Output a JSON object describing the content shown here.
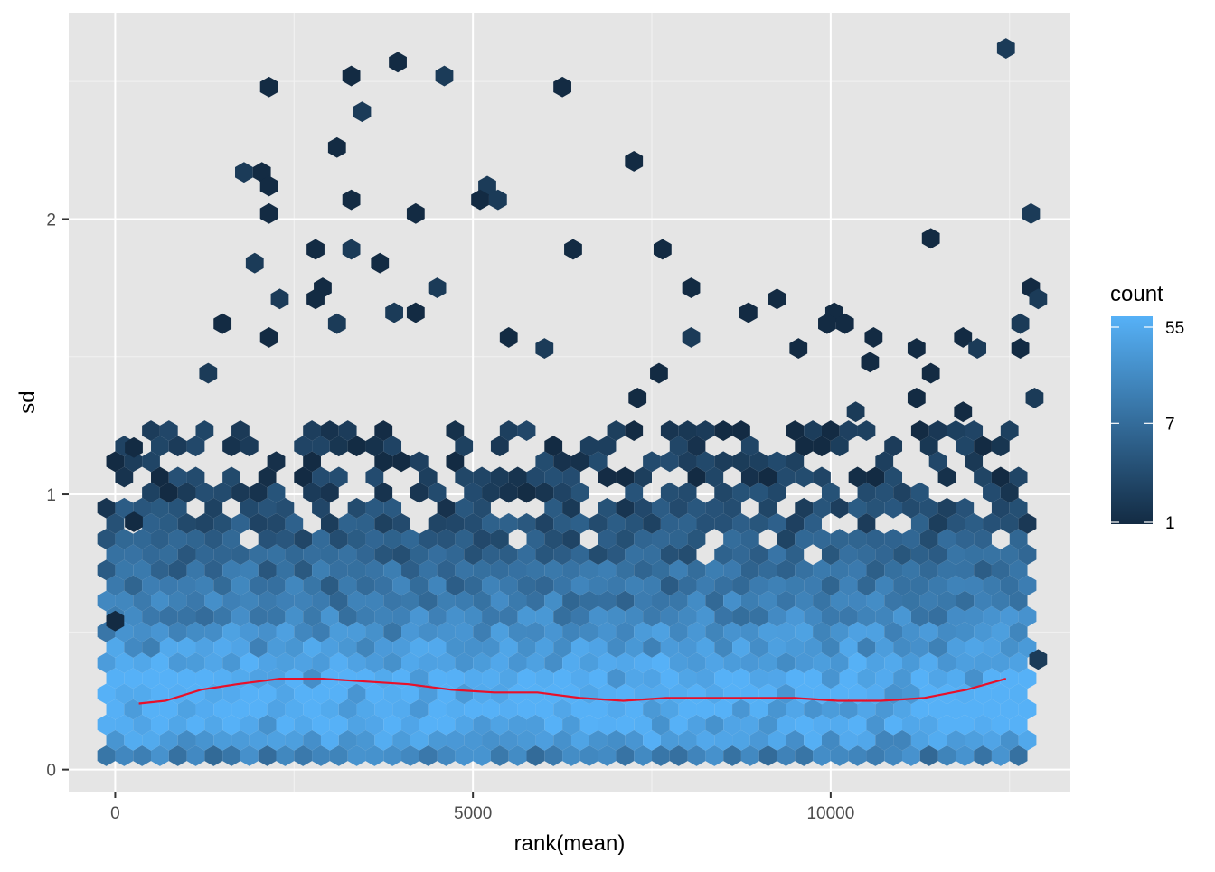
{
  "chart_data": {
    "type": "hexbin",
    "xlabel": "rank(mean)",
    "ylabel": "sd",
    "xlim": [
      -650,
      13350
    ],
    "ylim": [
      -0.08,
      2.75
    ],
    "x_ticks": [
      0,
      5000,
      10000
    ],
    "x_tick_labels": [
      "0",
      "5000",
      "10000"
    ],
    "y_ticks": [
      0,
      1,
      2
    ],
    "y_tick_labels": [
      "0",
      "1",
      "2"
    ],
    "x_minor_ticks": [
      2500,
      7500,
      12500
    ],
    "y_minor_ticks": [
      0.5,
      1.5,
      2.5
    ],
    "grid": true,
    "background": "#e5e5e5",
    "legend": {
      "title": "count",
      "position": "right",
      "scale": "log",
      "breaks": [
        1,
        7,
        55
      ],
      "labels": [
        "1",
        "7",
        "55"
      ],
      "color_low": "#132b43",
      "color_high": "#56b1f7"
    },
    "hex_bins": {
      "x_centers": [
        0,
        12500
      ],
      "n_columns": 51,
      "sd_rows": [
        {
          "sd": 0.1,
          "count": 30
        },
        {
          "sd": 0.2,
          "count": 50
        },
        {
          "sd": 0.3,
          "count": 48
        },
        {
          "sd": 0.4,
          "count": 30
        },
        {
          "sd": 0.5,
          "count": 20
        },
        {
          "sd": 0.6,
          "count": 12
        },
        {
          "sd": 0.7,
          "count": 8
        },
        {
          "sd": 0.8,
          "count": 5
        },
        {
          "sd": 0.9,
          "count": 3
        },
        {
          "sd": 1.0,
          "count": 2
        },
        {
          "sd": 1.1,
          "count": 1.6
        },
        {
          "sd": 1.2,
          "count": 1.3
        }
      ],
      "sparse_points": [
        {
          "x": 12450,
          "y": 2.62
        },
        {
          "x": 3950,
          "y": 2.57
        },
        {
          "x": 3300,
          "y": 2.52
        },
        {
          "x": 4600,
          "y": 2.52
        },
        {
          "x": 2150,
          "y": 2.48
        },
        {
          "x": 6250,
          "y": 2.48
        },
        {
          "x": 3450,
          "y": 2.39
        },
        {
          "x": 3100,
          "y": 2.26
        },
        {
          "x": 7250,
          "y": 2.21
        },
        {
          "x": 1800,
          "y": 2.17
        },
        {
          "x": 2050,
          "y": 2.17
        },
        {
          "x": 2150,
          "y": 2.12
        },
        {
          "x": 5200,
          "y": 2.12
        },
        {
          "x": 3300,
          "y": 2.07
        },
        {
          "x": 5100,
          "y": 2.07
        },
        {
          "x": 5350,
          "y": 2.07
        },
        {
          "x": 2150,
          "y": 2.02
        },
        {
          "x": 4200,
          "y": 2.02
        },
        {
          "x": 12800,
          "y": 2.02
        },
        {
          "x": 11400,
          "y": 1.93
        },
        {
          "x": 2800,
          "y": 1.89
        },
        {
          "x": 3300,
          "y": 1.89
        },
        {
          "x": 6400,
          "y": 1.89
        },
        {
          "x": 7650,
          "y": 1.89
        },
        {
          "x": 1950,
          "y": 1.84
        },
        {
          "x": 3700,
          "y": 1.84
        },
        {
          "x": 2900,
          "y": 1.75
        },
        {
          "x": 4500,
          "y": 1.75
        },
        {
          "x": 8050,
          "y": 1.75
        },
        {
          "x": 12800,
          "y": 1.75
        },
        {
          "x": 2300,
          "y": 1.71
        },
        {
          "x": 2800,
          "y": 1.71
        },
        {
          "x": 9250,
          "y": 1.71
        },
        {
          "x": 12900,
          "y": 1.71
        },
        {
          "x": 8850,
          "y": 1.66
        },
        {
          "x": 10050,
          "y": 1.66
        },
        {
          "x": 3900,
          "y": 1.66
        },
        {
          "x": 4200,
          "y": 1.66
        },
        {
          "x": 1500,
          "y": 1.62
        },
        {
          "x": 3100,
          "y": 1.62
        },
        {
          "x": 9950,
          "y": 1.62
        },
        {
          "x": 10200,
          "y": 1.62
        },
        {
          "x": 12650,
          "y": 1.62
        },
        {
          "x": 2150,
          "y": 1.57
        },
        {
          "x": 5500,
          "y": 1.57
        },
        {
          "x": 8050,
          "y": 1.57
        },
        {
          "x": 10600,
          "y": 1.57
        },
        {
          "x": 11850,
          "y": 1.57
        },
        {
          "x": 6000,
          "y": 1.53
        },
        {
          "x": 9550,
          "y": 1.53
        },
        {
          "x": 11200,
          "y": 1.53
        },
        {
          "x": 12050,
          "y": 1.53
        },
        {
          "x": 12650,
          "y": 1.53
        },
        {
          "x": 10550,
          "y": 1.48
        },
        {
          "x": 1300,
          "y": 1.44
        },
        {
          "x": 7600,
          "y": 1.44
        },
        {
          "x": 11400,
          "y": 1.44
        },
        {
          "x": 12850,
          "y": 1.35
        },
        {
          "x": 7300,
          "y": 1.35
        },
        {
          "x": 11200,
          "y": 1.35
        },
        {
          "x": 10350,
          "y": 1.3
        },
        {
          "x": 11850,
          "y": 1.3
        },
        {
          "x": 260,
          "y": 1.17
        },
        {
          "x": 12900,
          "y": 0.4
        },
        {
          "x": 260,
          "y": 0.9
        },
        {
          "x": 0,
          "y": 0.54
        }
      ],
      "notes_excluded": []
    },
    "trend_line": {
      "color": "#e8102a",
      "x": [
        330,
        700,
        1200,
        1700,
        2300,
        2900,
        3500,
        4100,
        4700,
        5300,
        5900,
        6500,
        7100,
        7700,
        8300,
        8900,
        9500,
        10100,
        10700,
        11300,
        11900,
        12450
      ],
      "y": [
        0.24,
        0.25,
        0.29,
        0.31,
        0.33,
        0.33,
        0.32,
        0.31,
        0.29,
        0.28,
        0.28,
        0.26,
        0.25,
        0.26,
        0.26,
        0.26,
        0.26,
        0.25,
        0.25,
        0.26,
        0.29,
        0.33
      ]
    }
  }
}
